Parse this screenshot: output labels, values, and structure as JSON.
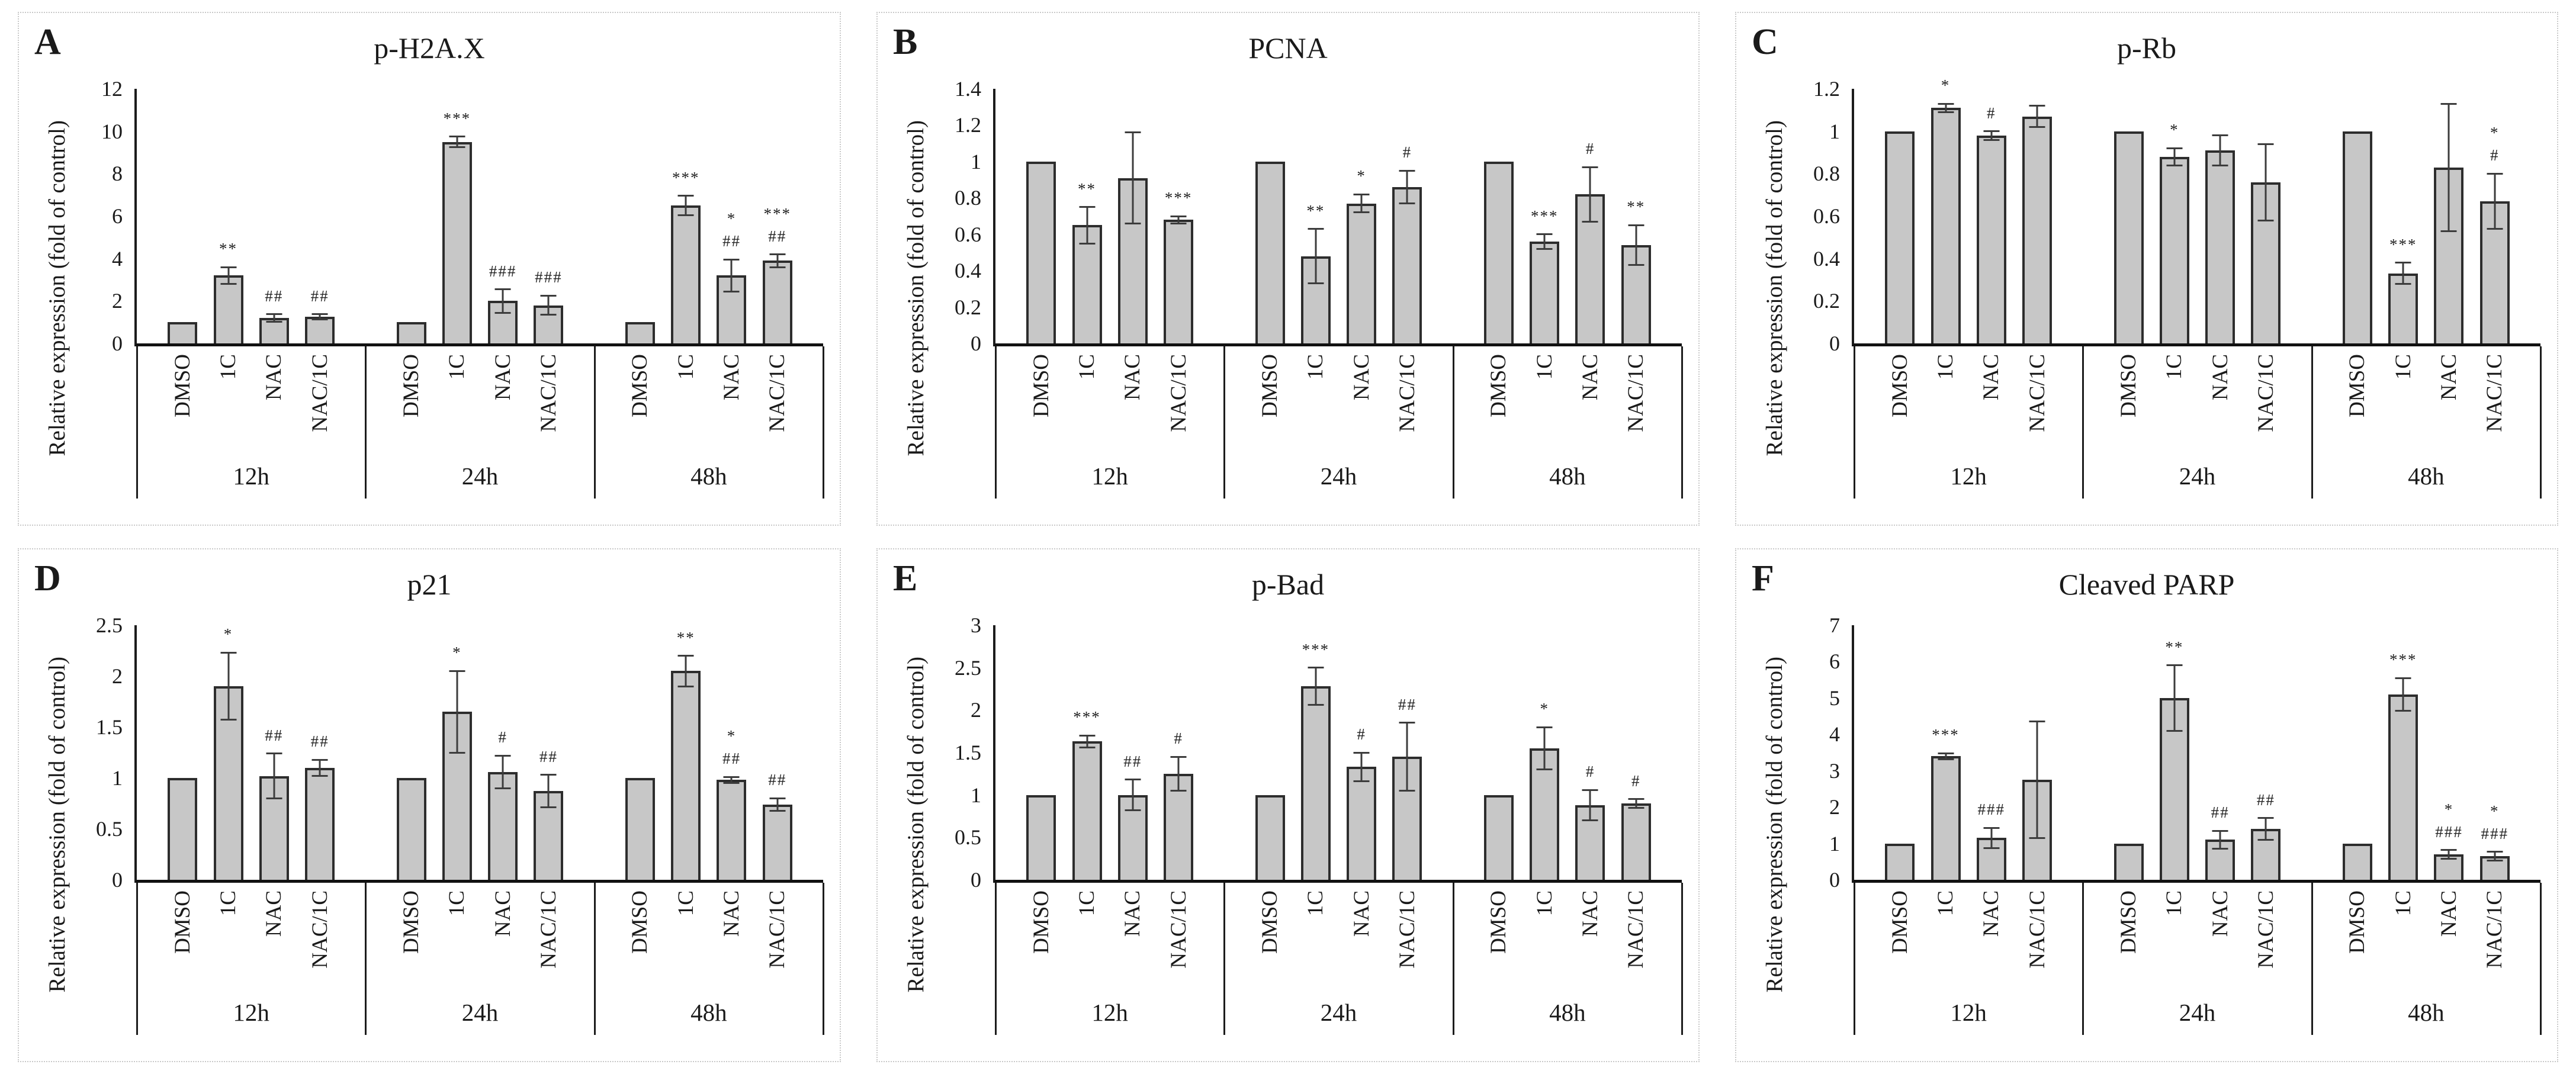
{
  "figure": {
    "ylabel": "Relative expression (fold of control)",
    "conditions": [
      "DMSO",
      "1C",
      "NAC",
      "NAC/1C"
    ],
    "time_groups": [
      "12h",
      "24h",
      "48h"
    ],
    "bar_fill_color": "#c7c7c7",
    "bar_border_color": "#2d2d2d",
    "significance_legend_symbols": [
      "*",
      "**",
      "***",
      "#",
      "##",
      "###"
    ]
  },
  "chart_data": [
    {
      "type": "bar",
      "panel": "A",
      "title": "p-H2A.X",
      "ylabel": "Relative expression (fold of control)",
      "ylim": [
        0,
        12
      ],
      "yticks": [
        "0",
        "2",
        "4",
        "6",
        "8",
        "10",
        "12"
      ],
      "categories": [
        "DMSO",
        "1C",
        "NAC",
        "NAC/1C"
      ],
      "groups": [
        {
          "label": "12h",
          "values": [
            1,
            3.2,
            1.2,
            1.25
          ],
          "errors": [
            0,
            0.4,
            0.18,
            0.12
          ],
          "sig": [
            [],
            [
              "**"
            ],
            [
              "##"
            ],
            [
              "##"
            ]
          ]
        },
        {
          "label": "24h",
          "values": [
            1,
            9.5,
            2.0,
            1.8
          ],
          "errors": [
            0,
            0.25,
            0.55,
            0.45
          ],
          "sig": [
            [],
            [
              "***"
            ],
            [
              "###"
            ],
            [
              "###"
            ]
          ]
        },
        {
          "label": "48h",
          "values": [
            1,
            6.5,
            3.2,
            3.9
          ],
          "errors": [
            0,
            0.45,
            0.75,
            0.3
          ],
          "sig": [
            [],
            [
              "***"
            ],
            [
              "*",
              "##"
            ],
            [
              "***",
              "##"
            ]
          ]
        }
      ]
    },
    {
      "type": "bar",
      "panel": "B",
      "title": "PCNA",
      "ylabel": "Relative expression (fold of control)",
      "ylim": [
        0,
        1.4
      ],
      "yticks": [
        "0",
        "0.2",
        "0.4",
        "0.6",
        "0.8",
        "1",
        "1.2",
        "1.4"
      ],
      "categories": [
        "DMSO",
        "1C",
        "NAC",
        "NAC/1C"
      ],
      "groups": [
        {
          "label": "12h",
          "values": [
            1,
            0.65,
            0.91,
            0.68
          ],
          "errors": [
            0,
            0.1,
            0.25,
            0.02
          ],
          "sig": [
            [],
            [
              "**"
            ],
            [],
            [
              "***"
            ]
          ]
        },
        {
          "label": "24h",
          "values": [
            1,
            0.48,
            0.77,
            0.86
          ],
          "errors": [
            0,
            0.15,
            0.05,
            0.09
          ],
          "sig": [
            [],
            [
              "**"
            ],
            [
              "*"
            ],
            [
              "#"
            ]
          ]
        },
        {
          "label": "48h",
          "values": [
            1,
            0.56,
            0.82,
            0.54
          ],
          "errors": [
            0,
            0.04,
            0.15,
            0.11
          ],
          "sig": [
            [],
            [
              "***"
            ],
            [
              "#"
            ],
            [
              "**"
            ]
          ]
        }
      ]
    },
    {
      "type": "bar",
      "panel": "C",
      "title": "p-Rb",
      "ylabel": "Relative expression (fold of control)",
      "ylim": [
        0,
        1.2
      ],
      "yticks": [
        "0",
        "0.2",
        "0.4",
        "0.6",
        "0.8",
        "1",
        "1.2"
      ],
      "categories": [
        "DMSO",
        "1C",
        "NAC",
        "NAC/1C"
      ],
      "groups": [
        {
          "label": "12h",
          "values": [
            1,
            1.11,
            0.98,
            1.07
          ],
          "errors": [
            0,
            0.02,
            0.02,
            0.05
          ],
          "sig": [
            [],
            [
              "*"
            ],
            [
              "#"
            ],
            []
          ]
        },
        {
          "label": "24h",
          "values": [
            1,
            0.88,
            0.91,
            0.76
          ],
          "errors": [
            0,
            0.04,
            0.07,
            0.18
          ],
          "sig": [
            [],
            [
              "*"
            ],
            [],
            []
          ]
        },
        {
          "label": "48h",
          "values": [
            1,
            0.33,
            0.83,
            0.67
          ],
          "errors": [
            0,
            0.05,
            0.3,
            0.13
          ],
          "sig": [
            [],
            [
              "***"
            ],
            [],
            [
              "*",
              "#"
            ]
          ]
        }
      ]
    },
    {
      "type": "bar",
      "panel": "D",
      "title": "p21",
      "ylabel": "Relative expression (fold of control)",
      "ylim": [
        0,
        2.5
      ],
      "yticks": [
        "0",
        "0.5",
        "1",
        "1.5",
        "2",
        "2.5"
      ],
      "categories": [
        "DMSO",
        "1C",
        "NAC",
        "NAC/1C"
      ],
      "groups": [
        {
          "label": "12h",
          "values": [
            1,
            1.9,
            1.02,
            1.1
          ],
          "errors": [
            0,
            0.33,
            0.22,
            0.08
          ],
          "sig": [
            [],
            [
              "*"
            ],
            [
              "##"
            ],
            [
              "##"
            ]
          ]
        },
        {
          "label": "24h",
          "values": [
            1,
            1.65,
            1.06,
            0.87
          ],
          "errors": [
            0,
            0.4,
            0.16,
            0.16
          ],
          "sig": [
            [],
            [
              "*"
            ],
            [
              "#"
            ],
            [
              "##"
            ]
          ]
        },
        {
          "label": "48h",
          "values": [
            1,
            2.05,
            0.98,
            0.74
          ],
          "errors": [
            0,
            0.15,
            0.03,
            0.06
          ],
          "sig": [
            [],
            [
              "**"
            ],
            [
              "*",
              "##"
            ],
            [
              "##"
            ]
          ]
        }
      ]
    },
    {
      "type": "bar",
      "panel": "E",
      "title": "p-Bad",
      "ylabel": "Relative expression (fold of control)",
      "ylim": [
        0,
        3
      ],
      "yticks": [
        "0",
        "0.5",
        "1",
        "1.5",
        "2",
        "2.5",
        "3"
      ],
      "categories": [
        "DMSO",
        "1C",
        "NAC",
        "NAC/1C"
      ],
      "groups": [
        {
          "label": "12h",
          "values": [
            1,
            1.63,
            1.0,
            1.25
          ],
          "errors": [
            0,
            0.07,
            0.18,
            0.2
          ],
          "sig": [
            [],
            [
              "***"
            ],
            [
              "##"
            ],
            [
              "#"
            ]
          ]
        },
        {
          "label": "24h",
          "values": [
            1,
            2.28,
            1.33,
            1.45
          ],
          "errors": [
            0,
            0.22,
            0.17,
            0.4
          ],
          "sig": [
            [],
            [
              "***"
            ],
            [
              "#"
            ],
            [
              "##"
            ]
          ]
        },
        {
          "label": "48h",
          "values": [
            1,
            1.55,
            0.88,
            0.9
          ],
          "errors": [
            0,
            0.25,
            0.18,
            0.05
          ],
          "sig": [
            [],
            [
              "*"
            ],
            [
              "#"
            ],
            [
              "#"
            ]
          ]
        }
      ]
    },
    {
      "type": "bar",
      "panel": "F",
      "title": "Cleaved PARP",
      "ylabel": "Relative expression (fold of control)",
      "ylim": [
        0,
        7
      ],
      "yticks": [
        "0",
        "1",
        "2",
        "3",
        "4",
        "5",
        "6",
        "7"
      ],
      "categories": [
        "DMSO",
        "1C",
        "NAC",
        "NAC/1C"
      ],
      "groups": [
        {
          "label": "12h",
          "values": [
            1,
            3.4,
            1.15,
            2.75
          ],
          "errors": [
            0,
            0.08,
            0.28,
            1.6
          ],
          "sig": [
            [],
            [
              "***"
            ],
            [
              "###"
            ],
            []
          ]
        },
        {
          "label": "24h",
          "values": [
            1,
            5.0,
            1.1,
            1.4
          ],
          "errors": [
            0,
            0.9,
            0.25,
            0.3
          ],
          "sig": [
            [],
            [
              "**"
            ],
            [
              "##"
            ],
            [
              "##"
            ]
          ]
        },
        {
          "label": "48h",
          "values": [
            1,
            5.1,
            0.7,
            0.65
          ],
          "errors": [
            0,
            0.45,
            0.12,
            0.12
          ],
          "sig": [
            [],
            [
              "***"
            ],
            [
              "*",
              "###"
            ],
            [
              "*",
              "###"
            ]
          ]
        }
      ]
    }
  ]
}
